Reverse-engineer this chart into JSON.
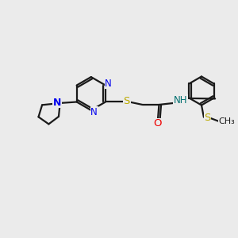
{
  "bg_color": "#ebebeb",
  "bond_color": "#1a1a1a",
  "N_color": "#0000ee",
  "O_color": "#ee0000",
  "S_color": "#bbaa00",
  "NH_color": "#007070",
  "font_size": 8.5,
  "lw": 1.6,
  "xlim": [
    0,
    10
  ],
  "ylim": [
    0,
    10
  ]
}
